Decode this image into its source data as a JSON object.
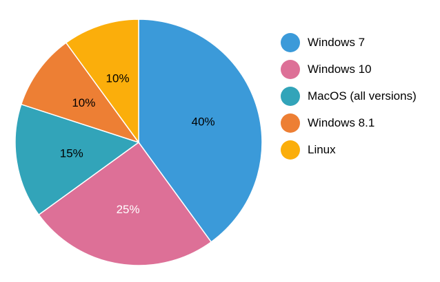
{
  "chart_data": {
    "type": "pie",
    "title": "",
    "slices": [
      {
        "label": "Windows 7",
        "value": 40,
        "display": "40%",
        "color": "#3b9ad9",
        "text_color": "#000000"
      },
      {
        "label": "Windows 10",
        "value": 25,
        "display": "25%",
        "color": "#dd7097",
        "text_color": "#ffffff"
      },
      {
        "label": "MacOS (all versions)",
        "value": 15,
        "display": "15%",
        "color": "#32a4b9",
        "text_color": "#000000"
      },
      {
        "label": "Windows 8.1",
        "value": 10,
        "display": "10%",
        "color": "#ed7f34",
        "text_color": "#000000"
      },
      {
        "label": "Linux",
        "value": 10,
        "display": "10%",
        "color": "#fbae0b",
        "text_color": "#000000"
      }
    ],
    "legend_position": "right"
  }
}
